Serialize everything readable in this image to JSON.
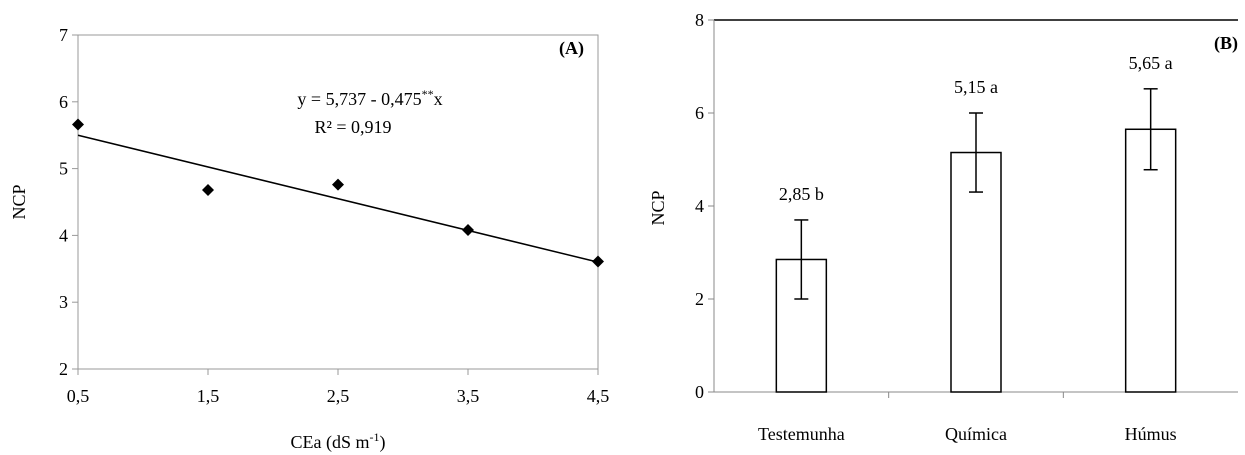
{
  "chart_data": [
    {
      "type": "scatter",
      "panel_label": "(A)",
      "xlabel": "CEa (dS m",
      "xlabel_sup": "-1",
      "xlabel_end": ")",
      "ylabel": "NCP",
      "xlim": [
        0.5,
        4.5
      ],
      "ylim": [
        2,
        7
      ],
      "x_ticks": [
        0.5,
        1.5,
        2.5,
        3.5,
        4.5
      ],
      "x_tick_labels": [
        "0,5",
        "1,5",
        "2,5",
        "3,5",
        "4,5"
      ],
      "y_ticks": [
        2,
        3,
        4,
        5,
        6,
        7
      ],
      "y_tick_labels": [
        "2",
        "3",
        "4",
        "5",
        "6",
        "7"
      ],
      "points": [
        {
          "x": 0.5,
          "y": 5.66
        },
        {
          "x": 1.5,
          "y": 4.68
        },
        {
          "x": 2.5,
          "y": 4.76
        },
        {
          "x": 3.5,
          "y": 4.08
        },
        {
          "x": 4.5,
          "y": 3.61
        }
      ],
      "trendline": {
        "intercept": 5.737,
        "slope": -0.475
      },
      "equation_main": "y = 5,737 - 0,475",
      "equation_sup": "**",
      "equation_end": "x",
      "r2_text": "R² = 0,919",
      "grid": false,
      "legend": "none"
    },
    {
      "type": "bar",
      "panel_label": "(B)",
      "ylabel": "NCP",
      "ylim": [
        0,
        8
      ],
      "y_ticks": [
        0,
        2,
        4,
        6,
        8
      ],
      "y_tick_labels": [
        "0",
        "2",
        "4",
        "6",
        "8"
      ],
      "categories": [
        "Testemunha",
        "Química",
        "Húmus"
      ],
      "values": [
        2.85,
        5.15,
        5.65
      ],
      "errors": [
        0.85,
        0.85,
        0.87
      ],
      "data_labels": [
        "2,85 b",
        "5,15 a",
        "5,65 a"
      ],
      "bar_color": "#ffffff",
      "grid": false,
      "legend": "none"
    }
  ]
}
